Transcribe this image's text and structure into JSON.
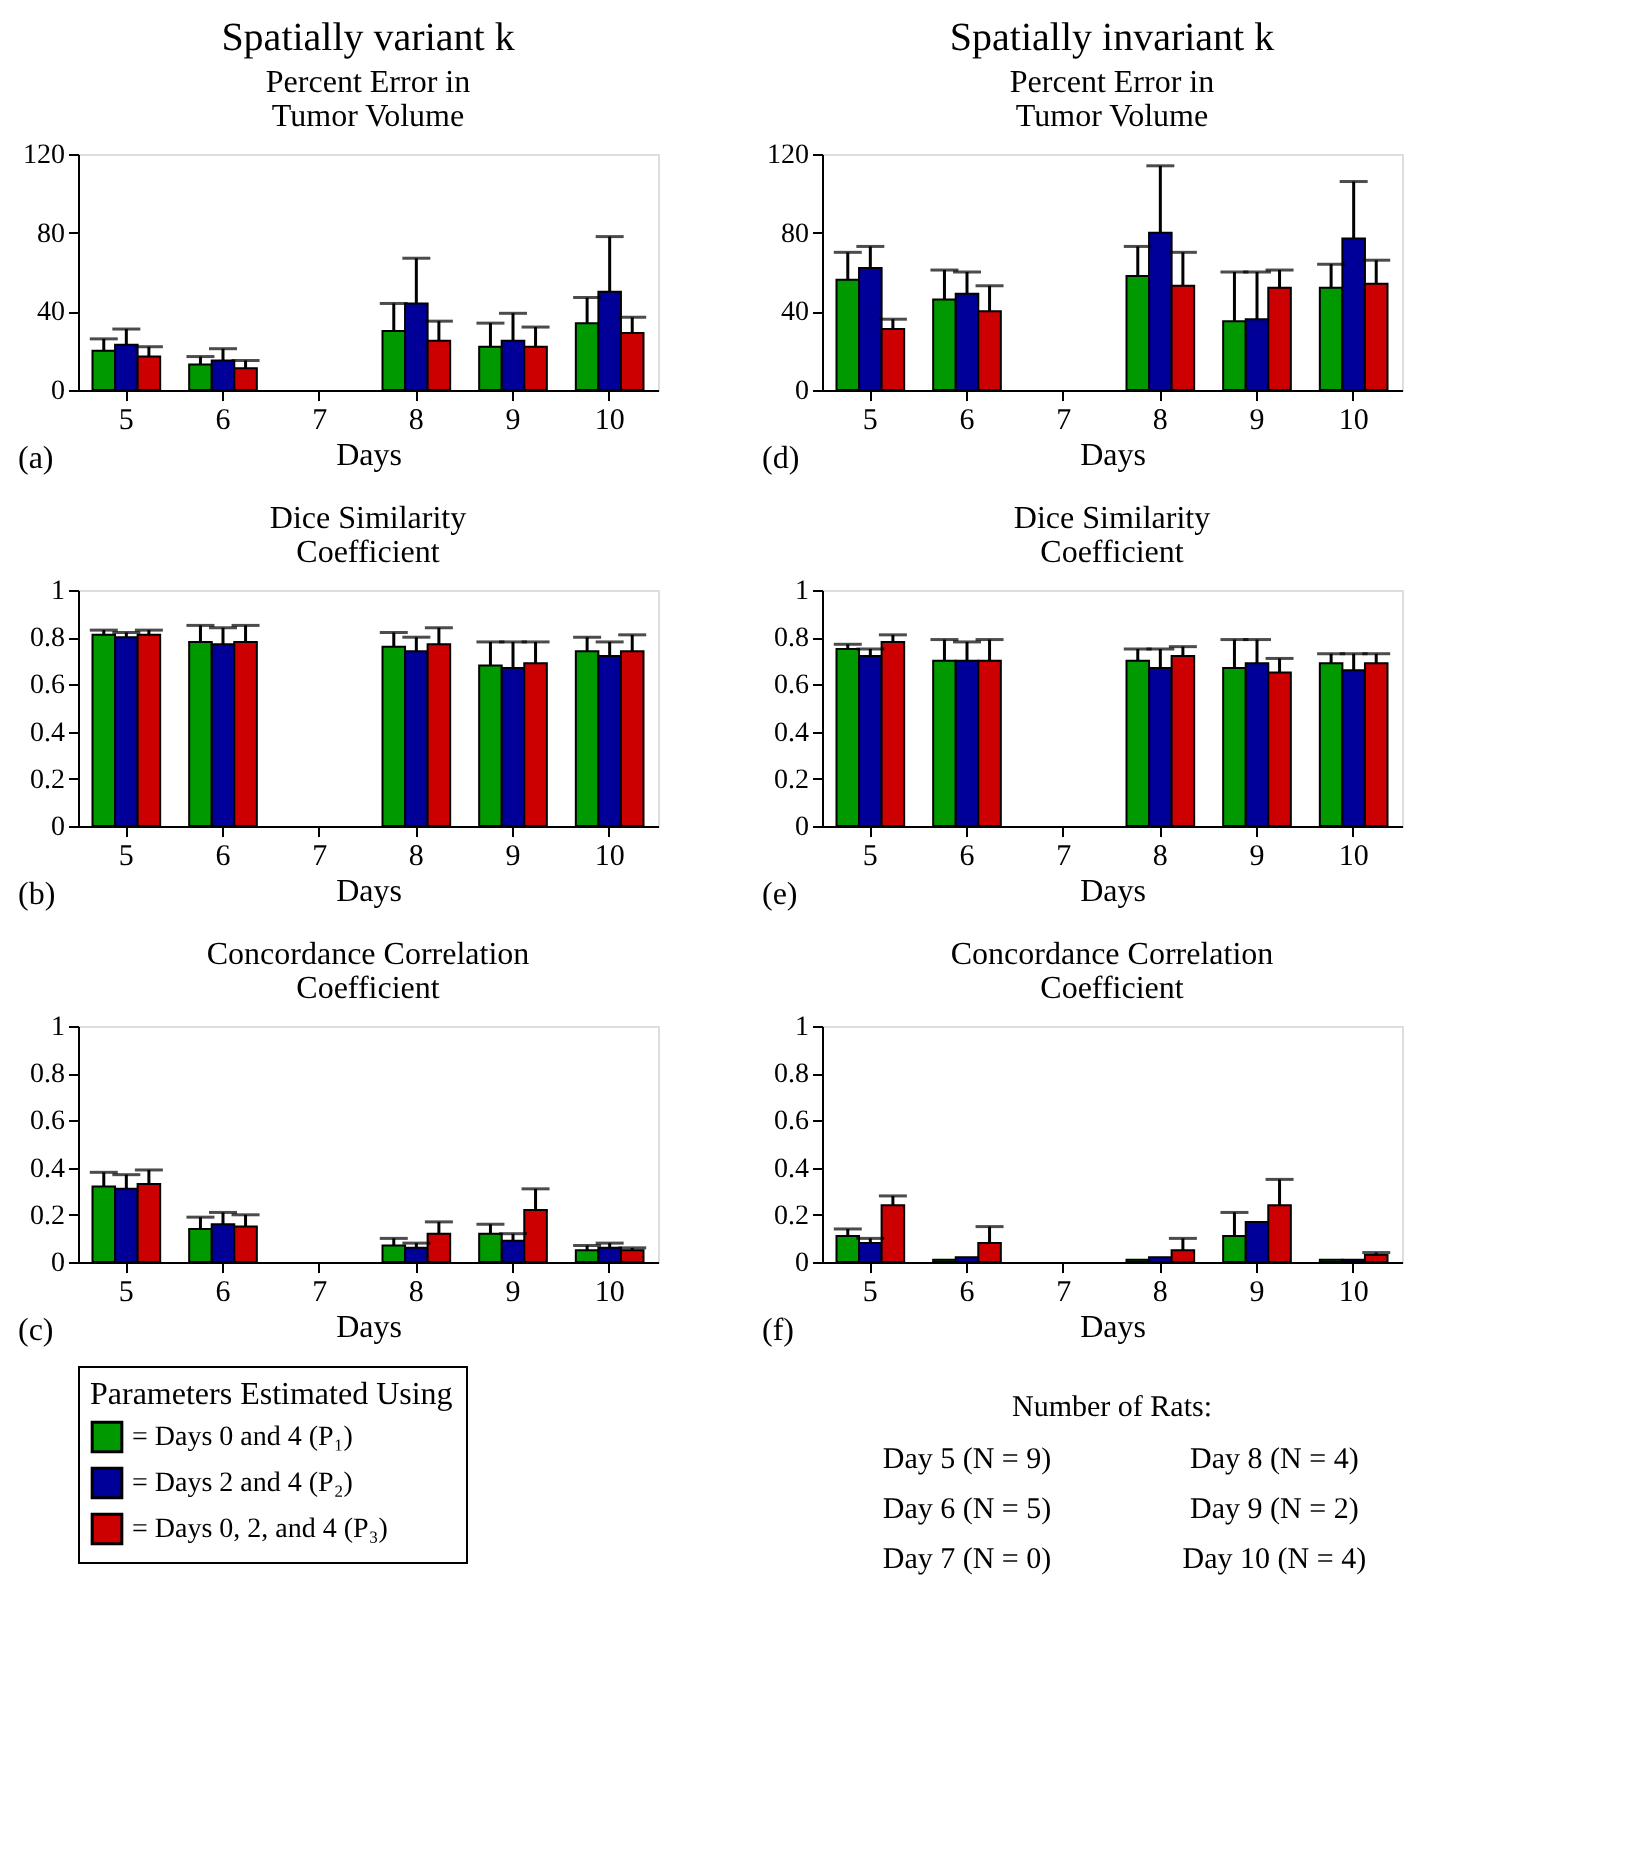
{
  "chart_data": [
    {
      "type": "bar",
      "title": "Spatially variant k",
      "subtitle": "Percent Error in\nTumor Volume",
      "xlabel": "Days",
      "categories": [
        "5",
        "6",
        "7",
        "8",
        "9",
        "10"
      ],
      "ylim": [
        0,
        120
      ],
      "yticks": [
        0,
        40,
        80,
        120
      ],
      "grid": false,
      "annotations": [
        "(a)"
      ],
      "series": [
        {
          "color": "#009900",
          "values": [
            20,
            13,
            null,
            30,
            22,
            34
          ],
          "errors": [
            [
              20,
              26
            ],
            [
              13,
              17
            ],
            null,
            [
              30,
              44
            ],
            [
              22,
              34
            ],
            [
              34,
              47
            ]
          ]
        },
        {
          "color": "#000099",
          "values": [
            23,
            15,
            null,
            44,
            25,
            50
          ],
          "errors": [
            [
              23,
              31
            ],
            [
              15,
              21
            ],
            null,
            [
              44,
              67
            ],
            [
              25,
              39
            ],
            [
              50,
              78
            ]
          ]
        },
        {
          "color": "#cc0000",
          "values": [
            17,
            11,
            null,
            25,
            22,
            29
          ],
          "errors": [
            [
              17,
              22
            ],
            [
              11,
              15
            ],
            null,
            [
              25,
              35
            ],
            [
              22,
              32
            ],
            [
              29,
              37
            ]
          ]
        }
      ]
    },
    {
      "type": "bar",
      "title": "Spatially invariant k",
      "subtitle": "Percent Error in\nTumor Volume",
      "xlabel": "Days",
      "categories": [
        "5",
        "6",
        "7",
        "8",
        "9",
        "10"
      ],
      "ylim": [
        0,
        120
      ],
      "yticks": [
        0,
        40,
        80,
        120
      ],
      "grid": false,
      "annotations": [
        "(d)"
      ],
      "series": [
        {
          "color": "#009900",
          "values": [
            56,
            46,
            null,
            58,
            35,
            52
          ],
          "errors": [
            [
              56,
              70
            ],
            [
              46,
              61
            ],
            null,
            [
              58,
              73
            ],
            [
              35,
              60
            ],
            [
              52,
              64
            ]
          ]
        },
        {
          "color": "#000099",
          "values": [
            62,
            49,
            null,
            80,
            36,
            77
          ],
          "errors": [
            [
              62,
              73
            ],
            [
              49,
              60
            ],
            null,
            [
              80,
              114
            ],
            [
              36,
              60
            ],
            [
              77,
              106
            ]
          ]
        },
        {
          "color": "#cc0000",
          "values": [
            31,
            40,
            null,
            53,
            52,
            54
          ],
          "errors": [
            [
              31,
              36
            ],
            [
              40,
              53
            ],
            null,
            [
              53,
              70
            ],
            [
              52,
              61
            ],
            [
              54,
              66
            ]
          ]
        }
      ]
    },
    {
      "type": "bar",
      "title": "Dice Similarity\nCoefficient",
      "xlabel": "Days",
      "categories": [
        "5",
        "6",
        "7",
        "8",
        "9",
        "10"
      ],
      "ylim": [
        0,
        1
      ],
      "yticks": [
        0,
        0.2,
        0.4,
        0.6,
        0.8,
        1
      ],
      "grid": false,
      "annotations": [
        "(b)"
      ],
      "series": [
        {
          "color": "#009900",
          "values": [
            0.81,
            0.78,
            null,
            0.76,
            0.68,
            0.74
          ],
          "errors": [
            [
              0.81,
              0.83
            ],
            [
              0.78,
              0.85
            ],
            null,
            [
              0.76,
              0.82
            ],
            [
              0.68,
              0.78
            ],
            [
              0.74,
              0.8
            ]
          ]
        },
        {
          "color": "#000099",
          "values": [
            0.8,
            0.77,
            null,
            0.74,
            0.67,
            0.72
          ],
          "errors": [
            [
              0.8,
              0.82
            ],
            [
              0.77,
              0.84
            ],
            null,
            [
              0.74,
              0.8
            ],
            [
              0.67,
              0.78
            ],
            [
              0.72,
              0.78
            ]
          ]
        },
        {
          "color": "#cc0000",
          "values": [
            0.81,
            0.78,
            null,
            0.77,
            0.69,
            0.74
          ],
          "errors": [
            [
              0.81,
              0.83
            ],
            [
              0.78,
              0.85
            ],
            null,
            [
              0.77,
              0.84
            ],
            [
              0.69,
              0.78
            ],
            [
              0.74,
              0.81
            ]
          ]
        }
      ]
    },
    {
      "type": "bar",
      "title": "Dice Similarity\nCoefficient",
      "xlabel": "Days",
      "categories": [
        "5",
        "6",
        "7",
        "8",
        "9",
        "10"
      ],
      "ylim": [
        0,
        1
      ],
      "yticks": [
        0,
        0.2,
        0.4,
        0.6,
        0.8,
        1
      ],
      "grid": false,
      "annotations": [
        "(e)"
      ],
      "series": [
        {
          "color": "#009900",
          "values": [
            0.75,
            0.7,
            null,
            0.7,
            0.67,
            0.69
          ],
          "errors": [
            [
              0.75,
              0.77
            ],
            [
              0.7,
              0.79
            ],
            null,
            [
              0.7,
              0.75
            ],
            [
              0.67,
              0.79
            ],
            [
              0.69,
              0.73
            ]
          ]
        },
        {
          "color": "#000099",
          "values": [
            0.72,
            0.7,
            null,
            0.67,
            0.69,
            0.66
          ],
          "errors": [
            [
              0.72,
              0.75
            ],
            [
              0.7,
              0.78
            ],
            null,
            [
              0.67,
              0.75
            ],
            [
              0.69,
              0.79
            ],
            [
              0.66,
              0.73
            ]
          ]
        },
        {
          "color": "#cc0000",
          "values": [
            0.78,
            0.7,
            null,
            0.72,
            0.65,
            0.69
          ],
          "errors": [
            [
              0.78,
              0.81
            ],
            [
              0.7,
              0.79
            ],
            null,
            [
              0.72,
              0.76
            ],
            [
              0.65,
              0.71
            ],
            [
              0.69,
              0.73
            ]
          ]
        }
      ]
    },
    {
      "type": "bar",
      "title": "Concordance Correlation\nCoefficient",
      "xlabel": "Days",
      "categories": [
        "5",
        "6",
        "7",
        "8",
        "9",
        "10"
      ],
      "ylim": [
        0,
        1
      ],
      "yticks": [
        0,
        0.2,
        0.4,
        0.6,
        0.8,
        1
      ],
      "grid": false,
      "annotations": [
        "(c)"
      ],
      "legend": "bottom",
      "legend_title": "Parameters Estimated Using",
      "series": [
        {
          "name": "= Days 0 and 4 (P₁)",
          "color": "#009900",
          "values": [
            0.32,
            0.14,
            null,
            0.07,
            0.12,
            0.05
          ],
          "errors": [
            [
              0.32,
              0.38
            ],
            [
              0.14,
              0.19
            ],
            null,
            [
              0.07,
              0.1
            ],
            [
              0.12,
              0.16
            ],
            [
              0.05,
              0.07
            ]
          ]
        },
        {
          "name": "= Days 2 and 4 (P₂)",
          "color": "#000099",
          "values": [
            0.31,
            0.16,
            null,
            0.06,
            0.09,
            0.06
          ],
          "errors": [
            [
              0.31,
              0.37
            ],
            [
              0.16,
              0.21
            ],
            null,
            [
              0.06,
              0.08
            ],
            [
              0.09,
              0.12
            ],
            [
              0.06,
              0.08
            ]
          ]
        },
        {
          "name": "= Days 0, 2, and 4 (P₃)",
          "color": "#cc0000",
          "values": [
            0.33,
            0.15,
            null,
            0.12,
            0.22,
            0.05
          ],
          "errors": [
            [
              0.33,
              0.39
            ],
            [
              0.15,
              0.2
            ],
            null,
            [
              0.12,
              0.17
            ],
            [
              0.22,
              0.31
            ],
            [
              0.05,
              0.06
            ]
          ]
        }
      ]
    },
    {
      "type": "bar",
      "title": "Concordance Correlation\nCoefficient",
      "xlabel": "Days",
      "categories": [
        "5",
        "6",
        "7",
        "8",
        "9",
        "10"
      ],
      "ylim": [
        0,
        1
      ],
      "yticks": [
        0,
        0.2,
        0.4,
        0.6,
        0.8,
        1
      ],
      "grid": false,
      "annotations": [
        "(f)",
        "Number of Rats:",
        "Day 5 (N = 9)",
        "Day 8 (N = 4)",
        "Day 6 (N = 5)",
        "Day 9 (N = 2)",
        "Day 7 (N = 0)",
        "Day 10 (N = 4)"
      ],
      "series": [
        {
          "color": "#009900",
          "values": [
            0.11,
            0.01,
            null,
            0.01,
            0.11,
            0.01
          ],
          "errors": [
            [
              0.11,
              0.14
            ],
            null,
            null,
            null,
            [
              0.11,
              0.21
            ],
            null
          ]
        },
        {
          "color": "#000099",
          "values": [
            0.08,
            0.02,
            null,
            0.02,
            0.17,
            0.01
          ],
          "errors": [
            [
              0.08,
              0.1
            ],
            null,
            null,
            null,
            null,
            null
          ]
        },
        {
          "color": "#cc0000",
          "values": [
            0.24,
            0.08,
            null,
            0.05,
            0.24,
            0.03
          ],
          "errors": [
            [
              0.24,
              0.28
            ],
            [
              0.08,
              0.15
            ],
            null,
            [
              0.05,
              0.1
            ],
            [
              0.24,
              0.35
            ],
            [
              0.03,
              0.04
            ]
          ]
        }
      ]
    }
  ]
}
